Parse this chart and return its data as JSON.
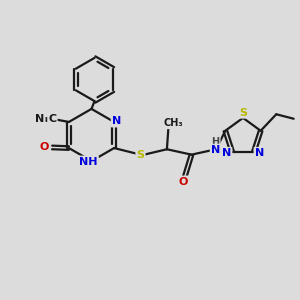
{
  "bg_color": "#dcdcdc",
  "bond_color": "#1a1a1a",
  "bond_width": 1.6,
  "dbo": 0.06,
  "atom_colors": {
    "C": "#1a1a1a",
    "N": "#0000dd",
    "O": "#cc0000",
    "S": "#b8b800",
    "H": "#444444"
  },
  "font_size": 8.0,
  "small_font": 7.0,
  "figsize": [
    3.0,
    3.0
  ],
  "dpi": 100,
  "xlim": [
    0,
    10
  ],
  "ylim": [
    0,
    10
  ]
}
